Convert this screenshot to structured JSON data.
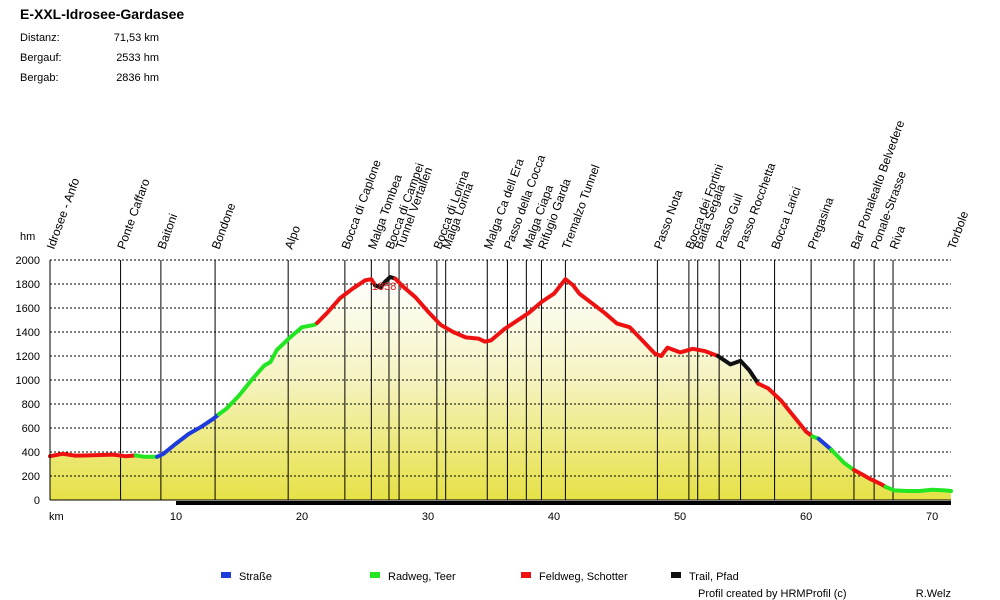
{
  "chart_data": {
    "type": "area",
    "title": "E-XXL-Idrosee-Gardasee",
    "stats": [
      {
        "label": "Distanz:",
        "value": "71,53 km"
      },
      {
        "label": "Bergauf:",
        "value": "2533 hm"
      },
      {
        "label": "Bergab:",
        "value": "2836 hm"
      }
    ],
    "xlabel": "km",
    "ylabel": "hm",
    "xlim": [
      0,
      71.5
    ],
    "ylim": [
      0,
      2000
    ],
    "x_ticks": [
      10,
      20,
      30,
      40,
      50,
      60,
      70
    ],
    "y_ticks": [
      0,
      200,
      400,
      600,
      800,
      1000,
      1200,
      1400,
      1600,
      1800,
      2000
    ],
    "grid": true,
    "max_annotation": "1858 m",
    "max_point": [
      27.0,
      1858
    ],
    "surface_colors": {
      "Straße": "#1e3cdc",
      "Radweg, Teer": "#22e622",
      "Feldweg, Schotter": "#ee1111",
      "Trail, Pfad": "#111111"
    },
    "legend": [
      {
        "name": "Straße",
        "color": "#1e3cdc"
      },
      {
        "name": "Radweg, Teer",
        "color": "#22e622"
      },
      {
        "name": "Feldweg, Schotter",
        "color": "#ee1111"
      },
      {
        "name": "Trail, Pfad",
        "color": "#111111"
      }
    ],
    "waypoints": [
      {
        "name": "Idrosee - Anfo",
        "km": 0
      },
      {
        "name": "Ponte Caffaro",
        "km": 5.6
      },
      {
        "name": "Baitoni",
        "km": 8.8
      },
      {
        "name": "Bondone",
        "km": 13.1
      },
      {
        "name": "Alpo",
        "km": 18.9
      },
      {
        "name": "Bocca di Caplone",
        "km": 23.4
      },
      {
        "name": "Malga Tombea",
        "km": 25.5
      },
      {
        "name": "Bocca di Campei",
        "km": 26.9
      },
      {
        "name": "Tunnel Vertallen",
        "km": 27.7
      },
      {
        "name": "Bocca di Lorina",
        "km": 30.7
      },
      {
        "name": "Malga Lorina",
        "km": 31.4
      },
      {
        "name": "Malga Ca dell Era",
        "km": 34.7
      },
      {
        "name": "Passo della Cocca",
        "km": 36.3
      },
      {
        "name": "Malga Ciapa",
        "km": 37.8
      },
      {
        "name": "Rifugio Garda",
        "km": 39.0
      },
      {
        "name": "Tremalzo Tunnel",
        "km": 40.9
      },
      {
        "name": "Passo Nota",
        "km": 48.2
      },
      {
        "name": "Bocca dei Fortini",
        "km": 50.7
      },
      {
        "name": "Baita Segala",
        "km": 51.4
      },
      {
        "name": "Passo Guil",
        "km": 53.1
      },
      {
        "name": "Passo Rocchetta",
        "km": 54.8
      },
      {
        "name": "Bocca Larici",
        "km": 57.5
      },
      {
        "name": "Pregasina",
        "km": 60.4
      },
      {
        "name": "Bar Ponalealto Belvedere",
        "km": 63.8
      },
      {
        "name": "Ponale-Strasse",
        "km": 65.4
      },
      {
        "name": "Riva",
        "km": 66.9
      },
      {
        "name": "Torbole",
        "km": 71.5
      }
    ],
    "series": [
      {
        "name": "Feldweg, Schotter",
        "points": [
          [
            0,
            365
          ],
          [
            1,
            385
          ],
          [
            2,
            370
          ],
          [
            3,
            372
          ],
          [
            4,
            375
          ],
          [
            5,
            378
          ],
          [
            6,
            365
          ],
          [
            6.8,
            372
          ]
        ]
      },
      {
        "name": "Radweg, Teer",
        "points": [
          [
            6.8,
            372
          ],
          [
            7.5,
            360
          ],
          [
            8.5,
            360
          ]
        ]
      },
      {
        "name": "Straße",
        "points": [
          [
            8.5,
            360
          ],
          [
            9,
            385
          ],
          [
            10,
            470
          ],
          [
            11,
            550
          ],
          [
            12,
            610
          ],
          [
            13,
            680
          ],
          [
            13.4,
            715
          ]
        ]
      },
      {
        "name": "Radweg, Teer",
        "points": [
          [
            13.4,
            715
          ],
          [
            14,
            760
          ],
          [
            15,
            870
          ],
          [
            16,
            1000
          ],
          [
            17,
            1120
          ],
          [
            17.5,
            1150
          ],
          [
            18,
            1250
          ],
          [
            19,
            1350
          ],
          [
            20,
            1440
          ],
          [
            21,
            1460
          ],
          [
            21.2,
            1475
          ]
        ]
      },
      {
        "name": "Feldweg, Schotter",
        "points": [
          [
            21.2,
            1475
          ],
          [
            22,
            1560
          ],
          [
            23,
            1680
          ],
          [
            24,
            1760
          ],
          [
            25,
            1830
          ],
          [
            25.5,
            1840
          ],
          [
            25.8,
            1790
          ]
        ]
      },
      {
        "name": "Trail, Pfad",
        "points": [
          [
            25.8,
            1790
          ],
          [
            26.2,
            1770
          ],
          [
            26.6,
            1820
          ],
          [
            27,
            1858
          ],
          [
            27.4,
            1845
          ]
        ]
      },
      {
        "name": "Feldweg, Schotter",
        "points": [
          [
            27.4,
            1845
          ],
          [
            28,
            1780
          ],
          [
            29,
            1690
          ],
          [
            30,
            1570
          ],
          [
            31,
            1460
          ],
          [
            32,
            1400
          ],
          [
            33,
            1355
          ],
          [
            34,
            1345
          ],
          [
            34.5,
            1320
          ],
          [
            35,
            1330
          ],
          [
            36,
            1420
          ],
          [
            37,
            1490
          ],
          [
            38,
            1560
          ],
          [
            39,
            1650
          ],
          [
            40,
            1720
          ],
          [
            40.9,
            1840
          ],
          [
            41.5,
            1790
          ],
          [
            42,
            1720
          ],
          [
            43,
            1640
          ],
          [
            44,
            1560
          ],
          [
            45,
            1470
          ],
          [
            46,
            1440
          ],
          [
            47,
            1330
          ],
          [
            48,
            1220
          ],
          [
            48.5,
            1200
          ],
          [
            49,
            1270
          ],
          [
            50,
            1230
          ],
          [
            51,
            1260
          ],
          [
            52,
            1240
          ],
          [
            53,
            1200
          ]
        ]
      },
      {
        "name": "Trail, Pfad",
        "points": [
          [
            53,
            1200
          ],
          [
            54,
            1130
          ],
          [
            54.8,
            1160
          ],
          [
            55.5,
            1080
          ],
          [
            56.2,
            970
          ]
        ]
      },
      {
        "name": "Feldweg, Schotter",
        "points": [
          [
            56.2,
            970
          ],
          [
            57,
            930
          ],
          [
            58,
            830
          ],
          [
            59,
            700
          ],
          [
            60,
            570
          ],
          [
            60.5,
            530
          ]
        ]
      },
      {
        "name": "Radweg, Teer",
        "points": [
          [
            60.5,
            530
          ],
          [
            61,
            510
          ]
        ]
      },
      {
        "name": "Straße",
        "points": [
          [
            61,
            510
          ],
          [
            62,
            420
          ]
        ]
      },
      {
        "name": "Radweg, Teer",
        "points": [
          [
            62,
            420
          ],
          [
            63,
            310
          ],
          [
            63.8,
            250
          ]
        ]
      },
      {
        "name": "Feldweg, Schotter",
        "points": [
          [
            63.8,
            250
          ],
          [
            64.5,
            210
          ],
          [
            65,
            180
          ],
          [
            66,
            130
          ],
          [
            66.3,
            110
          ]
        ]
      },
      {
        "name": "Radweg, Teer",
        "points": [
          [
            66.3,
            110
          ],
          [
            67,
            80
          ],
          [
            68,
            75
          ],
          [
            69,
            75
          ],
          [
            70,
            85
          ],
          [
            71,
            80
          ],
          [
            71.5,
            75
          ]
        ]
      }
    ]
  },
  "footer": {
    "credit": "Profil created by HRMProfil (c)",
    "author": "R.Welz"
  }
}
